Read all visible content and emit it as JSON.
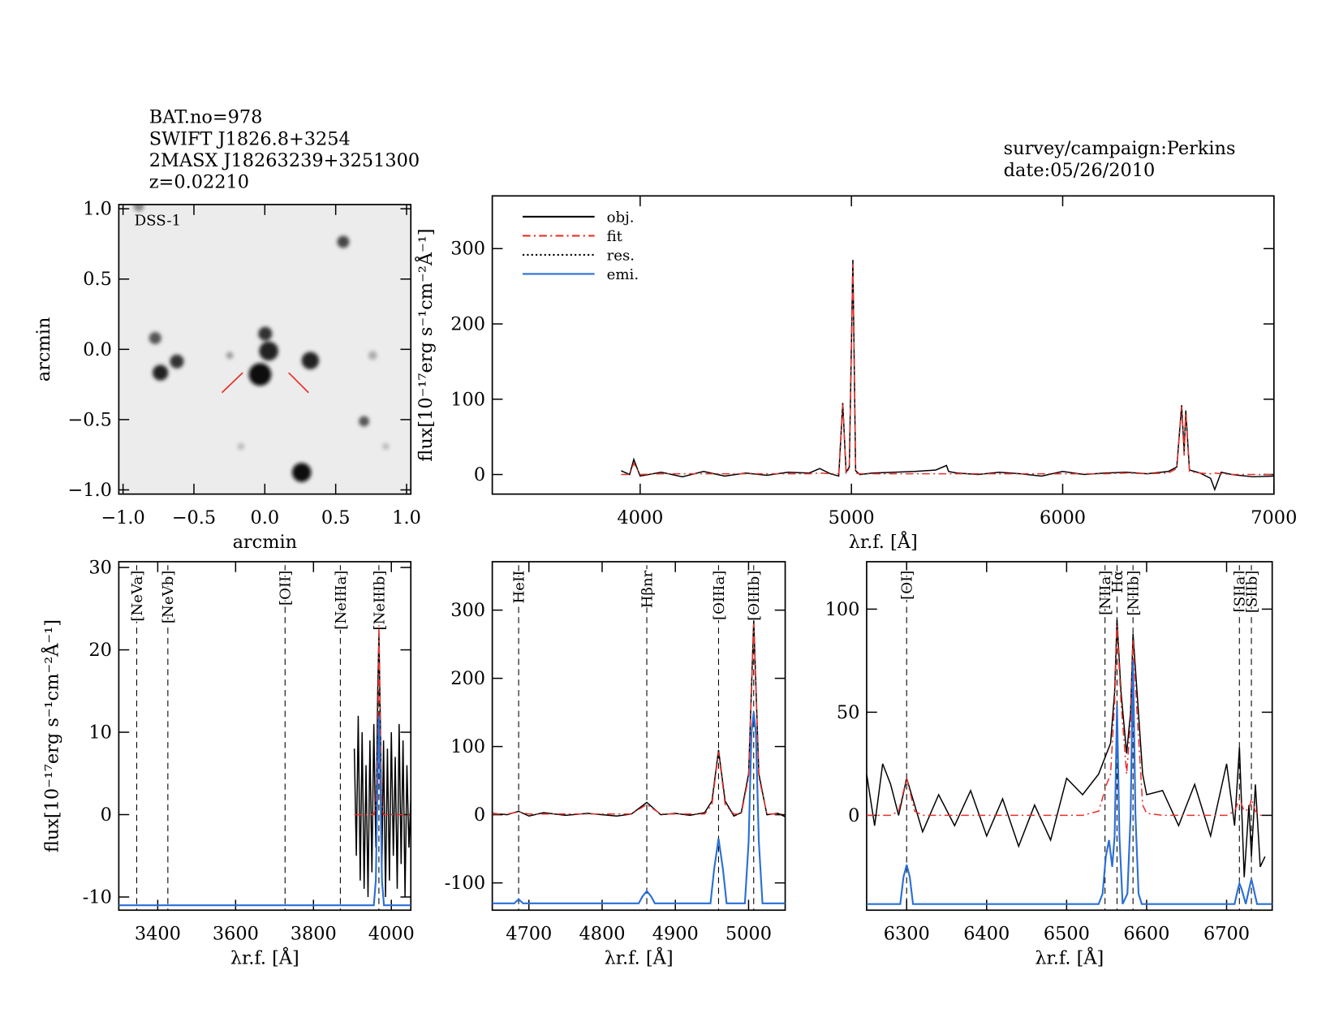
{
  "chart_data": [
    {
      "type": "image",
      "label": "DSS-1",
      "xlabel": "arcmin",
      "ylabel": "arcmin",
      "annotations": [
        "BAT.no=978",
        "SWIFT J1826.8+3254",
        "2MASX J18263239+3251300",
        "z=0.02210"
      ],
      "xlim": [
        -1.03,
        1.03
      ],
      "ylim": [
        -1.03,
        1.03
      ],
      "xticks": [
        {
          "value": -1,
          "label": "−1.0"
        },
        {
          "value": -0.5,
          "label": "−0.5"
        },
        {
          "value": 0,
          "label": "0.0"
        },
        {
          "value": 0.5,
          "label": "0.5"
        },
        {
          "value": 1,
          "label": "1.0"
        }
      ],
      "yticks": [
        {
          "value": -1,
          "label": "−1.0"
        },
        {
          "value": -0.5,
          "label": "−0.5"
        },
        {
          "value": 0,
          "label": "0.0"
        },
        {
          "value": 0.5,
          "label": "0.5"
        },
        {
          "value": 1,
          "label": "1.0"
        }
      ]
    },
    {
      "type": "line",
      "xlabel": "λr.f. [Å]",
      "ylabel": "flux[10⁻¹⁷erg s⁻¹cm⁻²Å⁻¹]",
      "annotations": [
        "survey/campaign:Perkins",
        "date:05/26/2010"
      ],
      "xlim": [
        3300,
        7000
      ],
      "ylim": [
        -26,
        370
      ],
      "xticks": [
        4000,
        5000,
        6000,
        7000
      ],
      "yticks": [
        0,
        100,
        200,
        300
      ],
      "legend": [
        {
          "name": "obj.",
          "color": "#000000",
          "dash": "solid"
        },
        {
          "name": "fit",
          "color": "#e8302a",
          "dash": "dashdot"
        },
        {
          "name": "res.",
          "color": "#000000",
          "dash": "dotted"
        },
        {
          "name": "emi.",
          "color": "#2a6fd6",
          "dash": "solid"
        }
      ],
      "series": [
        {
          "color": "#000000",
          "dash": "solid",
          "x": [
            3910,
            3950,
            3970,
            4000,
            4100,
            4200,
            4300,
            4400,
            4500,
            4600,
            4700,
            4800,
            4850,
            4900,
            4940,
            4959,
            4975,
            4990,
            5007,
            5020,
            5040,
            5100,
            5200,
            5300,
            5400,
            5450,
            5460,
            5500,
            5600,
            5700,
            5800,
            5900,
            6000,
            6100,
            6200,
            6300,
            6400,
            6500,
            6540,
            6563,
            6575,
            6583,
            6600,
            6650,
            6700,
            6720,
            6750,
            6800,
            6900,
            7000
          ],
          "values": [
            5,
            0,
            20,
            -2,
            3,
            -3,
            4,
            -2,
            2,
            -1,
            3,
            2,
            8,
            1,
            -2,
            95,
            3,
            10,
            285,
            5,
            0,
            2,
            3,
            4,
            6,
            12,
            4,
            2,
            0,
            3,
            1,
            -2,
            4,
            0,
            2,
            3,
            1,
            4,
            10,
            92,
            30,
            85,
            6,
            2,
            -5,
            -20,
            3,
            0,
            -3,
            -2
          ]
        },
        {
          "color": "#e8302a",
          "dash": "dashdot",
          "x": [
            3910,
            3950,
            3970,
            4000,
            4100,
            4200,
            4300,
            4400,
            4500,
            4600,
            4700,
            4800,
            4850,
            4900,
            4940,
            4959,
            4975,
            4990,
            5007,
            5020,
            5040,
            5100,
            5200,
            5300,
            5400,
            5450,
            5460,
            5500,
            5600,
            5700,
            5800,
            5900,
            6000,
            6100,
            6200,
            6300,
            6400,
            6500,
            6540,
            6563,
            6575,
            6583,
            6600,
            6650,
            6700,
            6720,
            6750,
            6800,
            6900,
            7000
          ],
          "values": [
            0,
            0,
            15,
            0,
            1,
            1,
            1,
            1,
            1,
            1,
            1,
            1,
            2,
            1,
            1,
            93,
            2,
            8,
            280,
            2,
            1,
            1,
            1,
            1,
            1,
            1,
            1,
            1,
            1,
            1,
            1,
            1,
            1,
            1,
            1,
            2,
            1,
            2,
            8,
            90,
            25,
            82,
            4,
            2,
            1,
            2,
            1,
            0,
            0,
            0
          ]
        }
      ]
    },
    {
      "type": "line",
      "xlabel": "λr.f. [Å]",
      "ylabel": "flux[10⁻¹⁷erg s⁻¹cm⁻²Å⁻¹]",
      "xlim": [
        3300,
        4050
      ],
      "ylim": [
        -11.6,
        30.7
      ],
      "xticks": [
        3400,
        3600,
        3800,
        4000
      ],
      "yticks": [
        -10,
        0,
        10,
        20,
        30
      ],
      "lines": [
        {
          "label": "[NeVa]",
          "x": 3346,
          "color": "#e8302a"
        },
        {
          "label": "[NeVb]",
          "x": 3426,
          "color": "#e8302a"
        },
        {
          "label": "[OII]",
          "x": 3727,
          "color": "#e8302a"
        },
        {
          "label": "[NeIIIa]",
          "x": 3869,
          "color": "#e8302a"
        },
        {
          "label": "[NeIIIb]",
          "x": 3968,
          "color": "#e8302a"
        }
      ],
      "series": [
        {
          "color": "#000000",
          "dash": "solid",
          "x": [
            3905,
            3910,
            3915,
            3920,
            3925,
            3930,
            3935,
            3940,
            3945,
            3950,
            3955,
            3960,
            3965,
            3968,
            3972,
            3976,
            3980,
            3985,
            3990,
            3995,
            4000,
            4005,
            4010,
            4015,
            4020,
            4025,
            4030,
            4035,
            4040,
            4045,
            4050
          ],
          "values": [
            8,
            -5,
            12,
            -8,
            10,
            -9,
            6,
            -10,
            9,
            -7,
            11,
            -4,
            15,
            22,
            10,
            -6,
            9,
            -10,
            8,
            -8,
            10,
            -5,
            7,
            -9,
            11,
            -6,
            9,
            -10,
            6,
            -4,
            2
          ]
        },
        {
          "color": "#e8302a",
          "dash": "dashdot",
          "x": [
            3905,
            3910,
            3915,
            3920,
            3925,
            3930,
            3935,
            3940,
            3945,
            3950,
            3955,
            3960,
            3965,
            3968,
            3972,
            3976,
            3980,
            3985,
            3990,
            3995,
            4000,
            4005,
            4010,
            4015,
            4020,
            4025,
            4030,
            4035,
            4040,
            4045,
            4050
          ],
          "values": [
            0,
            0,
            0,
            0,
            0,
            0,
            0,
            0,
            0,
            0,
            0,
            1,
            8,
            23,
            8,
            1,
            0,
            0,
            0,
            0,
            0,
            0,
            0,
            0,
            0,
            0,
            0,
            0,
            0,
            0,
            0
          ]
        },
        {
          "color": "#2a6fd6",
          "dash": "solid",
          "x": [
            3300,
            3955,
            3960,
            3964,
            3968,
            3972,
            3976,
            3981,
            4050
          ],
          "values": [
            -11,
            -11,
            -8,
            3,
            12,
            3,
            -8,
            -11,
            -11
          ]
        }
      ]
    },
    {
      "type": "line",
      "xlabel": "λr.f. [Å]",
      "xlim": [
        4650,
        5050
      ],
      "ylim": [
        -140,
        371
      ],
      "xticks": [
        4700,
        4800,
        4900,
        5000
      ],
      "yticks": [
        -100,
        0,
        100,
        200,
        300
      ],
      "lines": [
        {
          "label": "HeII",
          "x": 4686,
          "color": "#e8302a"
        },
        {
          "label": "Hβnr",
          "x": 4861,
          "color": "#000000"
        },
        {
          "label": "[OIIIa]",
          "x": 4959,
          "color": "#000000"
        },
        {
          "label": "[OIIIb]",
          "x": 5007,
          "color": "#000000"
        }
      ],
      "series": [
        {
          "color": "#000000",
          "dash": "solid",
          "x": [
            4650,
            4670,
            4686,
            4700,
            4720,
            4750,
            4780,
            4800,
            4820,
            4840,
            4861,
            4880,
            4900,
            4920,
            4940,
            4950,
            4959,
            4968,
            4980,
            4990,
            5000,
            5007,
            5014,
            5025,
            5040,
            5050
          ],
          "values": [
            2,
            0,
            5,
            -2,
            3,
            -1,
            2,
            0,
            -2,
            1,
            18,
            0,
            2,
            -1,
            3,
            20,
            95,
            20,
            -2,
            3,
            60,
            285,
            60,
            0,
            2,
            -3
          ]
        },
        {
          "color": "#e8302a",
          "dash": "dashdot",
          "x": [
            4650,
            4670,
            4686,
            4700,
            4720,
            4750,
            4780,
            4800,
            4820,
            4840,
            4861,
            4880,
            4900,
            4920,
            4940,
            4950,
            4959,
            4968,
            4980,
            4990,
            5000,
            5007,
            5014,
            5025,
            5040,
            5050
          ],
          "values": [
            1,
            1,
            4,
            1,
            1,
            1,
            1,
            1,
            1,
            1,
            15,
            1,
            1,
            1,
            1,
            15,
            92,
            15,
            1,
            1,
            55,
            280,
            55,
            1,
            1,
            1
          ]
        },
        {
          "color": "#2a6fd6",
          "dash": "solid",
          "x": [
            4650,
            4680,
            4686,
            4692,
            4850,
            4855,
            4861,
            4867,
            4872,
            4948,
            4953,
            4959,
            4965,
            4970,
            4995,
            5000,
            5004,
            5007,
            5010,
            5014,
            5019,
            5050
          ],
          "values": [
            -130,
            -130,
            -124,
            -130,
            -130,
            -120,
            -112,
            -120,
            -130,
            -130,
            -80,
            -35,
            -80,
            -130,
            -130,
            -40,
            120,
            150,
            120,
            -40,
            -130,
            -130
          ]
        }
      ]
    },
    {
      "type": "line",
      "xlabel": "λr.f. [Å]",
      "xlim": [
        6250,
        6757
      ],
      "ylim": [
        -46,
        123
      ],
      "xticks": [
        6300,
        6400,
        6500,
        6600,
        6700
      ],
      "yticks": [
        0,
        50,
        100
      ],
      "lines": [
        {
          "label": "[OI]",
          "x": 6300,
          "color": "#e8302a"
        },
        {
          "label": "[NIIa]",
          "x": 6548,
          "color": "#000000"
        },
        {
          "label": "Hα",
          "x": 6563,
          "color": "#000000"
        },
        {
          "label": "[NIIb]",
          "x": 6583,
          "color": "#000000"
        },
        {
          "label": "[SIIa]",
          "x": 6716,
          "color": "#000000"
        },
        {
          "label": "[SIIb]",
          "x": 6731,
          "color": "#000000"
        }
      ],
      "series": [
        {
          "color": "#000000",
          "dash": "solid",
          "x": [
            6250,
            6260,
            6270,
            6280,
            6290,
            6300,
            6310,
            6320,
            6340,
            6360,
            6380,
            6400,
            6420,
            6440,
            6460,
            6480,
            6500,
            6520,
            6540,
            6550,
            6555,
            6560,
            6563,
            6568,
            6575,
            6580,
            6583,
            6588,
            6595,
            6600,
            6620,
            6640,
            6660,
            6680,
            6700,
            6710,
            6716,
            6722,
            6728,
            6731,
            6736,
            6742,
            6748
          ],
          "values": [
            20,
            -5,
            25,
            15,
            0,
            18,
            5,
            -8,
            10,
            -5,
            12,
            -10,
            8,
            -15,
            5,
            -12,
            18,
            10,
            20,
            30,
            35,
            60,
            95,
            60,
            30,
            50,
            88,
            60,
            20,
            10,
            12,
            -5,
            15,
            -10,
            25,
            -5,
            33,
            -30,
            5,
            -20,
            15,
            -25,
            -20
          ]
        },
        {
          "color": "#e8302a",
          "dash": "dashdot",
          "x": [
            6250,
            6260,
            6270,
            6280,
            6290,
            6300,
            6310,
            6320,
            6340,
            6360,
            6380,
            6400,
            6420,
            6440,
            6460,
            6480,
            6500,
            6520,
            6540,
            6550,
            6555,
            6560,
            6563,
            6568,
            6575,
            6580,
            6583,
            6588,
            6595,
            6600,
            6620,
            6640,
            6660,
            6680,
            6700,
            6710,
            6716,
            6722,
            6728,
            6731,
            6736,
            6742,
            6748
          ],
          "values": [
            0,
            0,
            0,
            0,
            2,
            18,
            2,
            0,
            0,
            0,
            0,
            0,
            0,
            0,
            0,
            0,
            0,
            0,
            2,
            15,
            20,
            55,
            92,
            55,
            20,
            45,
            85,
            50,
            5,
            1,
            0,
            0,
            0,
            0,
            0,
            2,
            8,
            2,
            3,
            8,
            2,
            0,
            0
          ]
        },
        {
          "color": "#2a6fd6",
          "dash": "solid",
          "x": [
            6250,
            6292,
            6296,
            6300,
            6304,
            6308,
            6540,
            6545,
            6549,
            6553,
            6557,
            6560,
            6563,
            6566,
            6570,
            6576,
            6580,
            6583,
            6586,
            6590,
            6594,
            6700,
            6710,
            6714,
            6716,
            6719,
            6724,
            6728,
            6731,
            6734,
            6738,
            6757
          ],
          "values": [
            -43,
            -43,
            -30,
            -24,
            -30,
            -43,
            -43,
            -38,
            -20,
            -12,
            -25,
            -10,
            53,
            -10,
            -43,
            -38,
            0,
            75,
            0,
            -38,
            -43,
            -43,
            -43,
            -36,
            -33,
            -36,
            -43,
            -36,
            -31,
            -36,
            -43,
            -43
          ]
        }
      ]
    }
  ]
}
